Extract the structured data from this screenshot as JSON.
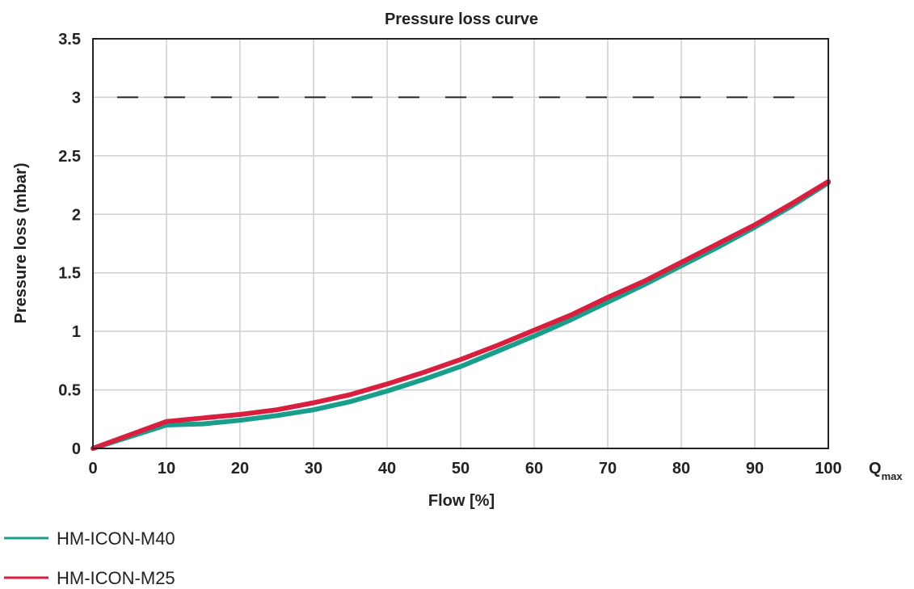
{
  "chart_data": {
    "type": "line",
    "title": "Pressure loss curve",
    "xlabel": "Flow [%]",
    "ylabel": "Pressure loss (mbar)",
    "x_axis_end_label": {
      "main": "Q",
      "sub": "max"
    },
    "xlim": [
      0,
      100
    ],
    "ylim": [
      0,
      3.5
    ],
    "xticks": [
      "0",
      "10",
      "20",
      "30",
      "40",
      "50",
      "60",
      "70",
      "80",
      "90",
      "100"
    ],
    "yticks": [
      "0",
      "0.5",
      "1",
      "1.5",
      "2",
      "2.5",
      "3",
      "3.5"
    ],
    "grid": true,
    "reference_line": {
      "y": 3,
      "style": "dashed",
      "color": "#222222"
    },
    "series": [
      {
        "name": "HM-ICON-M40",
        "color": "#1a9e8c",
        "x": [
          0,
          10,
          15,
          20,
          25,
          30,
          35,
          40,
          45,
          50,
          55,
          60,
          65,
          70,
          75,
          80,
          85,
          90,
          95,
          100
        ],
        "y": [
          0,
          0.2,
          0.21,
          0.24,
          0.28,
          0.33,
          0.4,
          0.49,
          0.59,
          0.7,
          0.83,
          0.96,
          1.1,
          1.25,
          1.4,
          1.56,
          1.72,
          1.89,
          2.07,
          2.27
        ]
      },
      {
        "name": "HM-ICON-M25",
        "color": "#d81f3f",
        "x": [
          0,
          10,
          15,
          20,
          25,
          30,
          35,
          40,
          45,
          50,
          55,
          60,
          65,
          70,
          75,
          80,
          85,
          90,
          95,
          100
        ],
        "y": [
          0,
          0.23,
          0.26,
          0.29,
          0.33,
          0.39,
          0.46,
          0.55,
          0.65,
          0.76,
          0.88,
          1.01,
          1.14,
          1.29,
          1.43,
          1.59,
          1.75,
          1.91,
          2.09,
          2.28
        ]
      }
    ],
    "legend_position": "bottom-left"
  }
}
